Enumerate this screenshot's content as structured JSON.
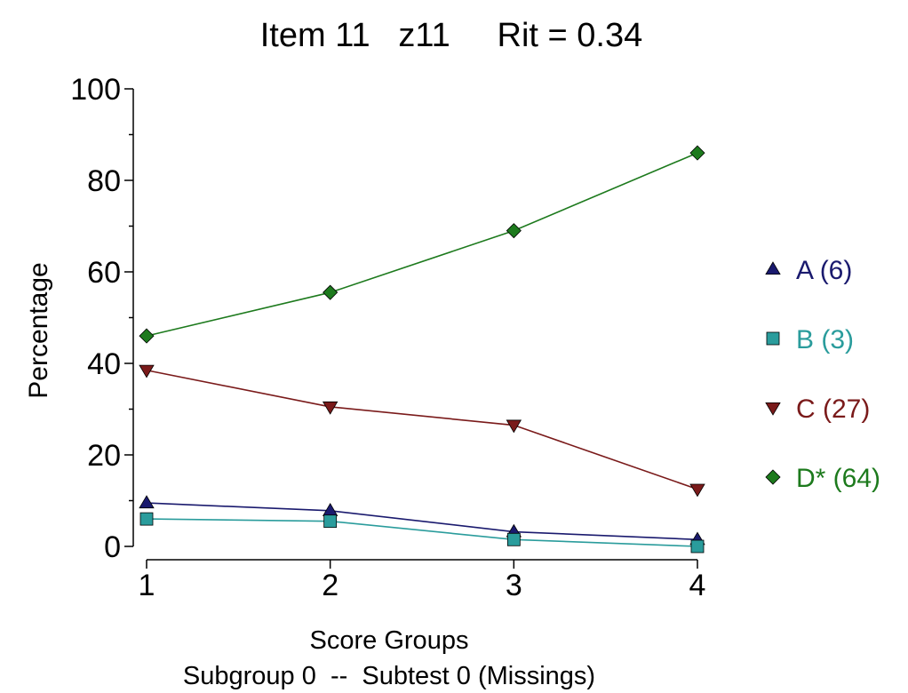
{
  "chart_data": {
    "type": "line",
    "title": "Item 11   z11     Rit = 0.34",
    "xlabel": "Score Groups",
    "xlabel2": "Subgroup 0  --  Subtest 0 (Missings)",
    "ylabel": "Percentage",
    "x": [
      1,
      2,
      3,
      4
    ],
    "xlim": [
      1,
      4
    ],
    "ylim": [
      0,
      100
    ],
    "yticks": [
      0,
      20,
      40,
      60,
      80,
      100
    ],
    "legend_position": "right",
    "series": [
      {
        "name": "A (6)",
        "marker": "triangle-up",
        "color": "#1a1a6e",
        "values": [
          9.5,
          7.8,
          3.2,
          1.5
        ]
      },
      {
        "name": "B (3)",
        "marker": "square",
        "color": "#2a9c9c",
        "values": [
          6.0,
          5.5,
          1.5,
          0.0
        ]
      },
      {
        "name": "C (27)",
        "marker": "triangle-down",
        "color": "#7a1a1a",
        "values": [
          38.5,
          30.5,
          26.5,
          12.5
        ]
      },
      {
        "name": "D* (64)",
        "marker": "diamond",
        "color": "#1d7a1d",
        "values": [
          46.0,
          55.5,
          69.0,
          86.0
        ]
      }
    ]
  }
}
